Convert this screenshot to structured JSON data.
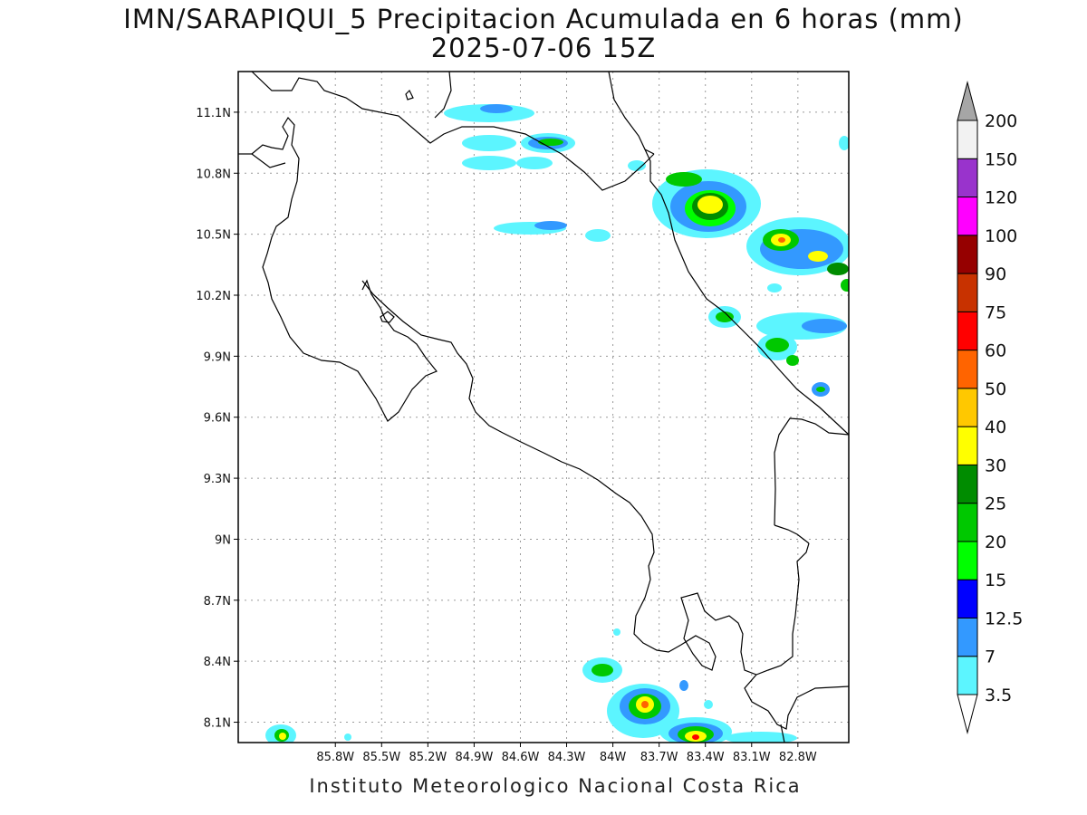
{
  "title_line1": "IMN/SARAPIQUI_5 Precipitacion Acumulada en 6 horas (mm)",
  "title_line2": "2025-07-06 15Z",
  "footer": "Instituto Meteorologico Nacional Costa Rica",
  "map": {
    "lon_range": [
      -86.43,
      -82.47
    ],
    "lat_range": [
      8.0,
      11.3
    ],
    "lon_ticks": [
      "85.8W",
      "85.5W",
      "85.2W",
      "84.9W",
      "84.6W",
      "84.3W",
      "84W",
      "83.7W",
      "83.4W",
      "83.1W",
      "82.8W"
    ],
    "lat_ticks": [
      "11.1N",
      "10.8N",
      "10.5N",
      "10.2N",
      "9.9N",
      "9.6N",
      "9.3N",
      "9N",
      "8.7N",
      "8.4N",
      "8.1N"
    ],
    "grid": true,
    "coastline_color": "#000000"
  },
  "colorbar": {
    "labels": [
      "3.5",
      "7",
      "12.5",
      "15",
      "20",
      "25",
      "30",
      "40",
      "50",
      "60",
      "75",
      "90",
      "100",
      "120",
      "150",
      "200"
    ],
    "colors": [
      "#ffffff",
      "#5cf5ff",
      "#3399ff",
      "#0000ff",
      "#00ff00",
      "#00c800",
      "#008c00",
      "#ffff00",
      "#ffc800",
      "#ff6400",
      "#ff0000",
      "#c83200",
      "#960000",
      "#ff00ff",
      "#9933cc",
      "#f2f2f2",
      "#a6a6a6"
    ]
  }
}
